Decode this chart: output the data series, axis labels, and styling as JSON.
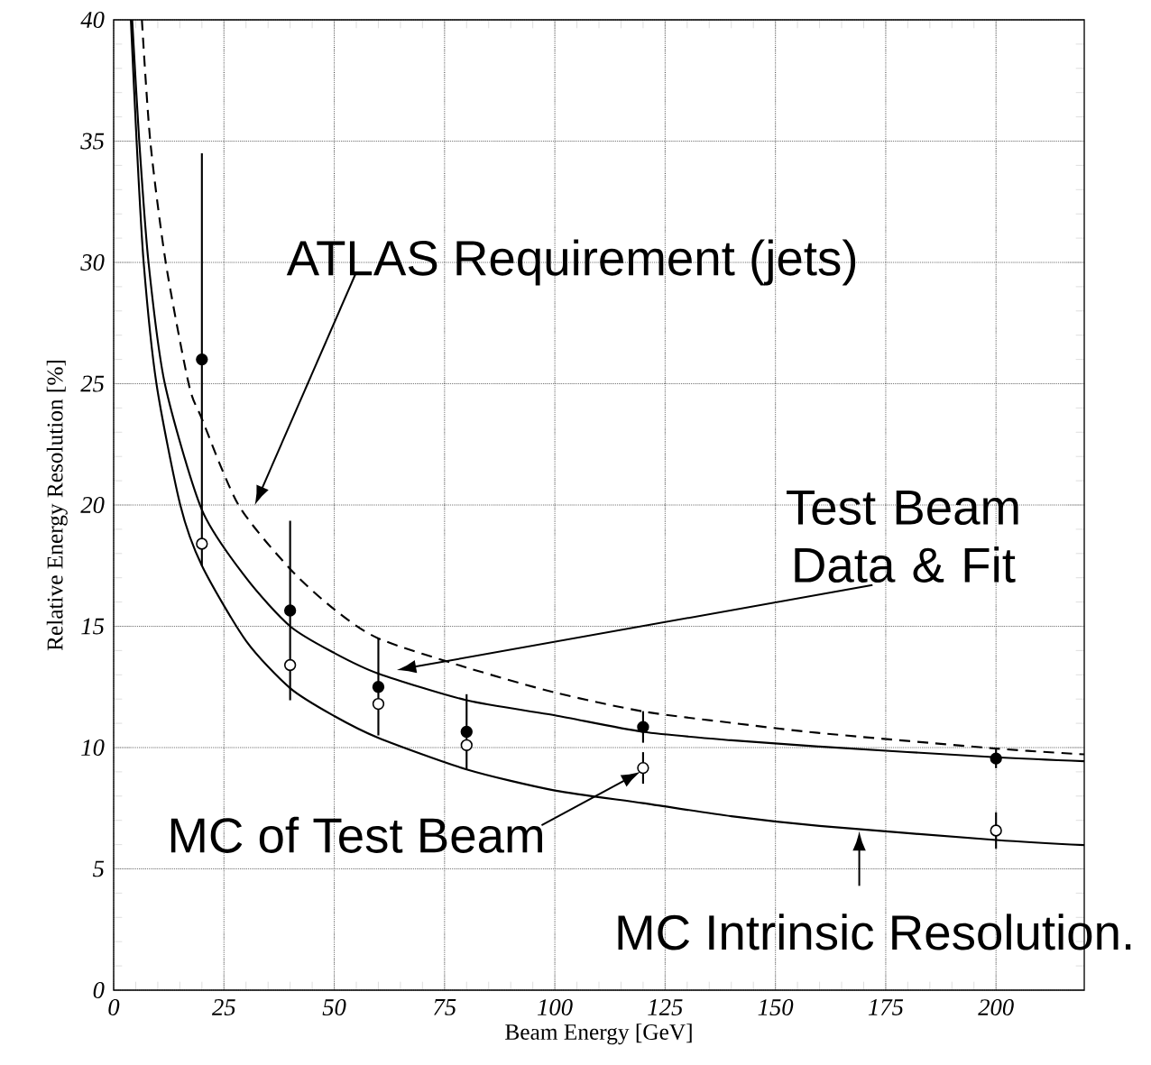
{
  "chart_data": {
    "type": "scatter",
    "xlabel": "Beam Energy [GeV]",
    "ylabel": "Relative Energy Resolution [%]",
    "xlim": [
      0,
      220
    ],
    "xticks": [
      0,
      25,
      50,
      75,
      100,
      125,
      150,
      175,
      200
    ],
    "ylim": [
      0,
      40
    ],
    "yticks": [
      0,
      5,
      10,
      15,
      20,
      25,
      30,
      35,
      40
    ],
    "grid": true,
    "series": [
      {
        "type": "line",
        "color": "#000000",
        "line_style": "solid",
        "marker": "none",
        "x": [
          4.2,
          5.8,
          7.9,
          11.6,
          20,
          30,
          40,
          50,
          60,
          80,
          100,
          120,
          140,
          160,
          200,
          220
        ],
        "values": [
          40,
          35,
          30,
          25,
          19.8,
          17.0,
          15.0,
          13.9,
          13.05,
          11.95,
          11.33,
          10.65,
          10.3,
          10.04,
          9.6,
          9.44
        ]
      },
      {
        "type": "line",
        "color": "#000000",
        "line_style": "solid",
        "marker": "none",
        "x": [
          3.9,
          5.2,
          6.8,
          9.7,
          15.1,
          20,
          30,
          40,
          50,
          60,
          80,
          100,
          120,
          140,
          160,
          200,
          220
        ],
        "values": [
          40,
          35,
          30,
          25,
          20,
          17.5,
          14.4,
          12.45,
          11.3,
          10.4,
          9.1,
          8.23,
          7.71,
          7.17,
          6.77,
          6.19,
          5.98
        ]
      },
      {
        "type": "line",
        "color": "#000000",
        "line_style": "dashed",
        "marker": "none",
        "x": [
          6.4,
          8.3,
          11.8,
          17,
          20,
          28.3,
          40,
          50,
          60,
          80,
          100,
          120,
          140,
          160,
          200,
          220
        ],
        "values": [
          40,
          35,
          30,
          25,
          23.55,
          20,
          17.36,
          15.7,
          14.5,
          13.3,
          12.27,
          11.49,
          11.02,
          10.6,
          9.96,
          9.72
        ]
      },
      {
        "color": "#000000",
        "marker": "circle",
        "x": [
          20,
          40,
          60,
          80,
          120,
          200
        ],
        "values": [
          26.0,
          15.65,
          12.5,
          10.65,
          10.85,
          9.55
        ],
        "errors": [
          8.5,
          3.7,
          2.0,
          1.55,
          0.65,
          0.4
        ]
      },
      {
        "color": "#000000",
        "marker": "circle",
        "x": [
          20,
          40,
          60,
          80,
          120,
          200
        ],
        "values": [
          18.4,
          13.4,
          11.8,
          10.1,
          9.16,
          6.58
        ],
        "errors": [
          null,
          null,
          null,
          null,
          0.65,
          0.75
        ]
      }
    ],
    "annotations": [
      "ATLAS  Requirement (jets)",
      "Test Beam Data & Fit",
      "MC of Test Beam",
      "MC Intrinsic Resolution."
    ]
  }
}
